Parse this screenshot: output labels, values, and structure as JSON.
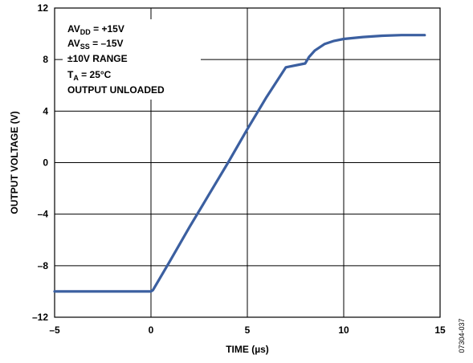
{
  "chart_data": {
    "type": "line",
    "title": "",
    "xlabel": "TIME (µs)",
    "ylabel": "OUTPUT VOLTAGE (V)",
    "xlim": [
      -5,
      15
    ],
    "ylim": [
      -12,
      12
    ],
    "x_ticks": [
      "–5",
      "0",
      "5",
      "10",
      "15"
    ],
    "y_ticks": [
      "12",
      "8",
      "4",
      "0",
      "–4",
      "–8",
      "–12"
    ],
    "grid": true,
    "series_color": "#3b5fa0",
    "series": [
      {
        "x": [
          -5,
          -4,
          -3,
          -2,
          -1,
          0,
          0.1,
          1,
          2,
          3,
          4,
          5,
          6,
          7,
          8,
          8.2,
          8.5,
          9,
          9.5,
          10,
          11,
          12,
          13,
          14.2
        ],
        "y": [
          -10,
          -10,
          -10,
          -10,
          -10,
          -10,
          -9.9,
          -7.6,
          -5.0,
          -2.5,
          0.0,
          2.6,
          5.1,
          7.4,
          7.7,
          8.2,
          8.7,
          9.2,
          9.45,
          9.6,
          9.75,
          9.85,
          9.9,
          9.9
        ]
      }
    ],
    "annotations": {
      "line1_main": "AV",
      "line1_sub": "DD",
      "line1_rest": " = +15V",
      "line2_main": "AV",
      "line2_sub": "SS",
      "line2_rest": " = –15V",
      "line3": "±10V RANGE",
      "line4_main": "T",
      "line4_sub": "A",
      "line4_rest": " = 25°C",
      "line5": "OUTPUT UNLOADED"
    },
    "figure_id": "07304-037"
  }
}
